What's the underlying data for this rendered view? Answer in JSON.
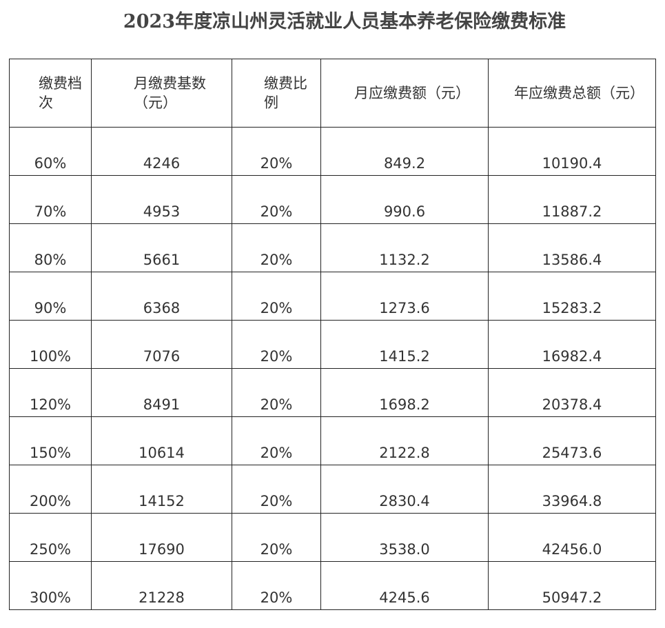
{
  "header": {
    "title": "2023年度凉山州灵活就业人员基本养老保险缴费标准"
  },
  "table": {
    "columns": [
      "缴费档次",
      "月缴费基数（元）",
      "缴费比例",
      "月应缴费额（元）",
      "年应缴费总额（元）"
    ],
    "rows": [
      [
        "60%",
        "4246",
        "20%",
        "849.2",
        "10190.4"
      ],
      [
        "70%",
        "4953",
        "20%",
        "990.6",
        "11887.2"
      ],
      [
        "80%",
        "5661",
        "20%",
        "1132.2",
        "13586.4"
      ],
      [
        "90%",
        "6368",
        "20%",
        "1273.6",
        "15283.2"
      ],
      [
        "100%",
        "7076",
        "20%",
        "1415.2",
        "16982.4"
      ],
      [
        "120%",
        "8491",
        "20%",
        "1698.2",
        "20378.4"
      ],
      [
        "150%",
        "10614",
        "20%",
        "2122.8",
        "25473.6"
      ],
      [
        "200%",
        "14152",
        "20%",
        "2830.4",
        "33964.8"
      ],
      [
        "250%",
        "17690",
        "20%",
        "3538.0",
        "42456.0"
      ],
      [
        "300%",
        "21228",
        "20%",
        "4245.6",
        "50947.2"
      ]
    ]
  }
}
